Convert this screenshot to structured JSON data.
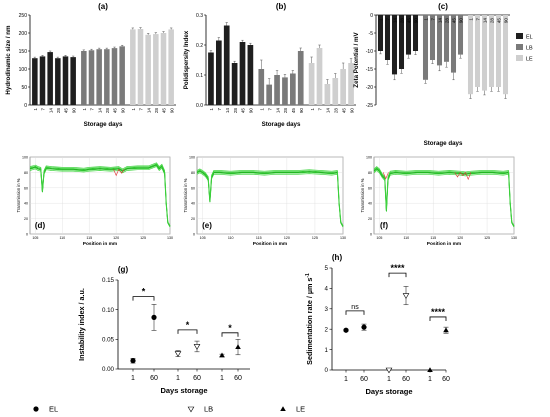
{
  "chart_data": [
    {
      "panel": "(a)",
      "type": "bar",
      "ylabel": "Hydrodinamic size / nm",
      "xlabel": "Storage days",
      "ylim": [
        0,
        250
      ],
      "yticks": [
        0,
        50,
        100,
        150,
        200,
        250
      ],
      "categories": [
        "1",
        "7",
        "14",
        "28",
        "45",
        "90",
        "1",
        "7",
        "14",
        "28",
        "45",
        "90",
        "1",
        "7",
        "14",
        "28",
        "45",
        "90"
      ],
      "groups": [
        {
          "name": "EL",
          "color": "#1f1f1f",
          "values": [
            130,
            135,
            147,
            130,
            135,
            133
          ],
          "errors": [
            3,
            3,
            3,
            3,
            3,
            3
          ]
        },
        {
          "name": "LB",
          "color": "#7a7a7a",
          "values": [
            150,
            152,
            155,
            155,
            158,
            163
          ],
          "errors": [
            3,
            3,
            3,
            3,
            3,
            3
          ]
        },
        {
          "name": "LE",
          "color": "#cfcfcf",
          "values": [
            210,
            211,
            195,
            197,
            200,
            210
          ],
          "errors": [
            4,
            4,
            4,
            4,
            4,
            4
          ]
        }
      ]
    },
    {
      "panel": "(b)",
      "type": "bar",
      "ylabel": "Polidispersity Index",
      "xlabel": "Storage days",
      "ylim": [
        0,
        0.3
      ],
      "yticks": [
        "0.0",
        "0.1",
        "0.2",
        "0.3"
      ],
      "categories": [
        "1",
        "7",
        "14",
        "28",
        "45",
        "90",
        "1",
        "7",
        "14",
        "28",
        "45",
        "90",
        "1",
        "7",
        "14",
        "28",
        "45",
        "90"
      ],
      "groups": [
        {
          "name": "EL",
          "color": "#1f1f1f",
          "values": [
            0.175,
            0.215,
            0.265,
            0.14,
            0.21,
            0.2
          ],
          "errors": [
            0.006,
            0.01,
            0.01,
            0.006,
            0.006,
            0.006
          ]
        },
        {
          "name": "LB",
          "color": "#7a7a7a",
          "values": [
            0.12,
            0.068,
            0.1,
            0.092,
            0.105,
            0.18
          ],
          "errors": [
            0.03,
            0.02,
            0.015,
            0.01,
            0.01,
            0.01
          ]
        },
        {
          "name": "LE",
          "color": "#cfcfcf",
          "values": [
            0.14,
            0.19,
            0.07,
            0.09,
            0.12,
            0.14
          ],
          "errors": [
            0.02,
            0.01,
            0.015,
            0.015,
            0.02,
            0.015
          ]
        }
      ]
    },
    {
      "panel": "(c)",
      "type": "bar",
      "ylabel": "Zeta Potential / mV",
      "xlabel": "Storage days",
      "ylim": [
        -25,
        0
      ],
      "yticks": [
        0,
        -5,
        -10,
        -15,
        -20,
        -25
      ],
      "categories": [
        "1",
        "7",
        "14",
        "28",
        "45",
        "90",
        "1",
        "7",
        "14",
        "28",
        "45",
        "90",
        "1",
        "7",
        "14",
        "28",
        "45",
        "90"
      ],
      "legend": [
        "EL",
        "LB",
        "LE"
      ],
      "groups": [
        {
          "name": "EL",
          "color": "#1f1f1f",
          "values": [
            -10,
            -12.5,
            -16.5,
            -15,
            -11,
            -10
          ],
          "errors": [
            0.8,
            1.2,
            1.5,
            1.2,
            1,
            1
          ]
        },
        {
          "name": "LB",
          "color": "#7a7a7a",
          "values": [
            -18,
            -12.5,
            -14,
            -13,
            -16,
            -11
          ],
          "errors": [
            1,
            1,
            1.5,
            1.5,
            2,
            1
          ]
        },
        {
          "name": "LE",
          "color": "#cfcfcf",
          "values": [
            -22,
            -20,
            -21,
            -20,
            -20,
            -22
          ],
          "errors": [
            1.2,
            1.2,
            1.2,
            1.2,
            1.2,
            1.2
          ]
        }
      ]
    },
    {
      "panel": "(d)",
      "type": "line",
      "ylabel": "Transmission in %",
      "xlabel": "Position in mm",
      "ylim": [
        0,
        100
      ],
      "yticks": [
        0,
        20,
        40,
        60,
        80,
        100
      ],
      "xticks": [
        105,
        110,
        115,
        120,
        125,
        130
      ],
      "x": [
        104,
        104.5,
        105,
        105.5,
        106,
        106.3,
        106.6,
        107,
        108,
        110,
        112,
        114,
        115,
        117,
        119,
        120.5,
        121.2,
        122,
        124,
        126,
        127.5,
        128,
        128.5,
        129,
        129.3,
        129.6,
        130
      ],
      "y": [
        85,
        86,
        87,
        85,
        84,
        55,
        80,
        86,
        85,
        84,
        84,
        83,
        84,
        85,
        84,
        85,
        82,
        85,
        86,
        86,
        90,
        85,
        88,
        80,
        40,
        15,
        10
      ]
    },
    {
      "panel": "(e)",
      "type": "line",
      "ylabel": "Transmission in %",
      "xlabel": "Position in mm",
      "ylim": [
        0,
        100
      ],
      "yticks": [
        0,
        20,
        40,
        60,
        80,
        100
      ],
      "xticks": [
        105,
        110,
        115,
        120,
        125,
        130
      ],
      "x": [
        104,
        104.5,
        105,
        105.5,
        106,
        106.3,
        106.6,
        107,
        108,
        110,
        112,
        114,
        116,
        118,
        120,
        122,
        124,
        126,
        128,
        129,
        129.3,
        129.6,
        130
      ],
      "y": [
        80,
        82,
        80,
        77,
        72,
        42,
        74,
        80,
        80,
        79,
        80,
        80,
        79,
        80,
        80,
        80,
        81,
        80,
        79,
        80,
        40,
        15,
        10
      ]
    },
    {
      "panel": "(f)",
      "type": "line",
      "ylabel": "Transmission in %",
      "xlabel": "Position in mm",
      "ylim": [
        0,
        100
      ],
      "yticks": [
        0,
        20,
        40,
        60,
        80,
        100
      ],
      "xticks": [
        105,
        110,
        115,
        120,
        125,
        130
      ],
      "x": [
        104,
        104.5,
        105,
        105.5,
        106,
        106.3,
        106.6,
        107,
        108,
        110,
        112,
        114,
        116,
        118,
        120,
        121,
        122,
        124,
        126,
        128,
        129,
        129.3,
        129.6,
        130
      ],
      "y": [
        82,
        85,
        82,
        76,
        72,
        30,
        72,
        79,
        80,
        79,
        80,
        80,
        79,
        80,
        79,
        78,
        79,
        80,
        80,
        79,
        80,
        40,
        15,
        10
      ]
    },
    {
      "panel": "(g)",
      "type": "scatter",
      "ylabel": "Instability index / a.u.",
      "xlabel": "Days storage",
      "ylim": [
        0,
        0.15
      ],
      "yticks": [
        "0.00",
        "0.05",
        "0.10",
        "0.15"
      ],
      "xticklabels": [
        "1",
        "60",
        "1",
        "60",
        "1",
        "60"
      ],
      "points": [
        {
          "series": "EL",
          "day": "1",
          "value": 0.014,
          "error": 0.004
        },
        {
          "series": "EL",
          "day": "60",
          "value": 0.087,
          "error": 0.022
        },
        {
          "series": "LB",
          "day": "1",
          "value": 0.026,
          "error": 0.005
        },
        {
          "series": "LB",
          "day": "60",
          "value": 0.038,
          "error": 0.009
        },
        {
          "series": "LE",
          "day": "1",
          "value": 0.023,
          "error": 0.002
        },
        {
          "series": "LE",
          "day": "60",
          "value": 0.037,
          "error": 0.013
        }
      ],
      "significance": [
        "*",
        "*",
        "*"
      ],
      "legend": [
        "EL",
        "LB",
        "LE"
      ]
    },
    {
      "panel": "(h)",
      "type": "scatter",
      "ylabel": "Sedimentation rate / µm s",
      "ylabel_sup": "-1",
      "xlabel": "Days storage",
      "ylim": [
        0,
        5
      ],
      "yticks": [
        0,
        1,
        2,
        3,
        4,
        5
      ],
      "xticklabels": [
        "1",
        "60",
        "1",
        "60",
        "1",
        "60"
      ],
      "points": [
        {
          "series": "EL",
          "day": "1",
          "value": 1.95,
          "error": 0.05
        },
        {
          "series": "EL",
          "day": "60",
          "value": 2.1,
          "error": 0.15
        },
        {
          "series": "LB",
          "day": "1",
          "value": 0.0,
          "error": 0
        },
        {
          "series": "LB",
          "day": "60",
          "value": 3.65,
          "error": 0.45
        },
        {
          "series": "LE",
          "day": "1",
          "value": 0.0,
          "error": 0
        },
        {
          "series": "LE",
          "day": "60",
          "value": 1.95,
          "error": 0.15
        }
      ],
      "significance": [
        "ns",
        "****",
        "****"
      ]
    }
  ]
}
